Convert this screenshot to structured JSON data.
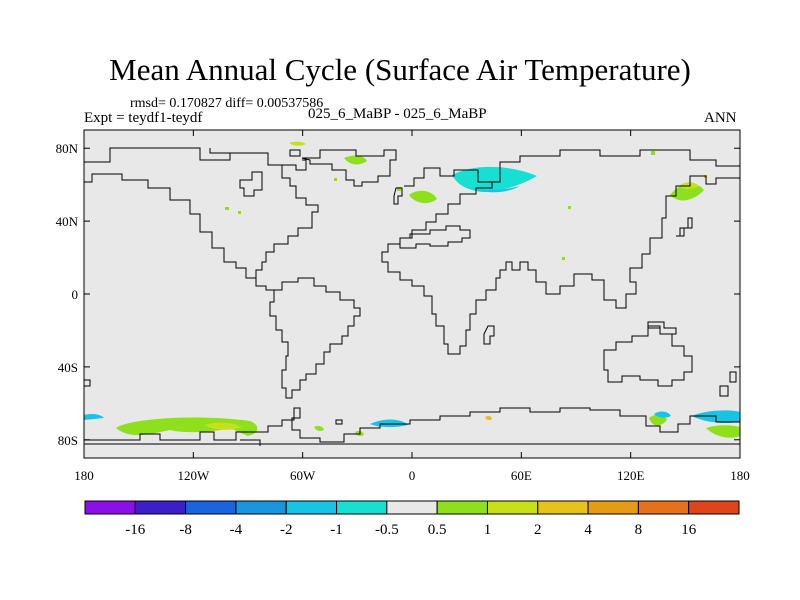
{
  "title": "Mean Annual Cycle (Surface Air Temperature)",
  "stats": "rmsd= 0.170827 diff= 0.00537586",
  "expt": "Expt = teydf1-teydf",
  "center_label": "025_6_MaBP - 025_6_MaBP",
  "season": "ANN",
  "map": {
    "background_color": "#e8e8e8",
    "x_ticks": [
      {
        "lon": -180,
        "label": "180"
      },
      {
        "lon": -120,
        "label": "120W"
      },
      {
        "lon": -60,
        "label": "60W"
      },
      {
        "lon": 0,
        "label": "0"
      },
      {
        "lon": 60,
        "label": "60E"
      },
      {
        "lon": 120,
        "label": "120E"
      },
      {
        "lon": 180,
        "label": "180"
      }
    ],
    "y_ticks": [
      {
        "lat": 80,
        "label": "80N"
      },
      {
        "lat": 40,
        "label": "40N"
      },
      {
        "lat": 0,
        "label": "0"
      },
      {
        "lat": -40,
        "label": "40S"
      },
      {
        "lat": -80,
        "label": "80S"
      }
    ],
    "lon_range": [
      -180,
      180
    ],
    "lat_range": [
      -90,
      90
    ]
  },
  "colorbar": {
    "colors": [
      "#8b0fe8",
      "#3d1ec9",
      "#1a64e0",
      "#1a96e0",
      "#17c4e6",
      "#17dfd2",
      "#e8e8e8",
      "#8ee01c",
      "#c8e01a",
      "#e6c21a",
      "#e69b14",
      "#e6711a",
      "#e0441a"
    ],
    "labels": [
      "-16",
      "-8",
      "-4",
      "-2",
      "-1",
      "-0.5",
      "0.5",
      "1",
      "2",
      "4",
      "8",
      "16"
    ]
  },
  "anomaly_colors": {
    "cyan": "#17dfd2",
    "light_blue": "#17c4e6",
    "green": "#8ee01c",
    "yellow": "#c8e01a",
    "orange": "#e6c21a"
  }
}
